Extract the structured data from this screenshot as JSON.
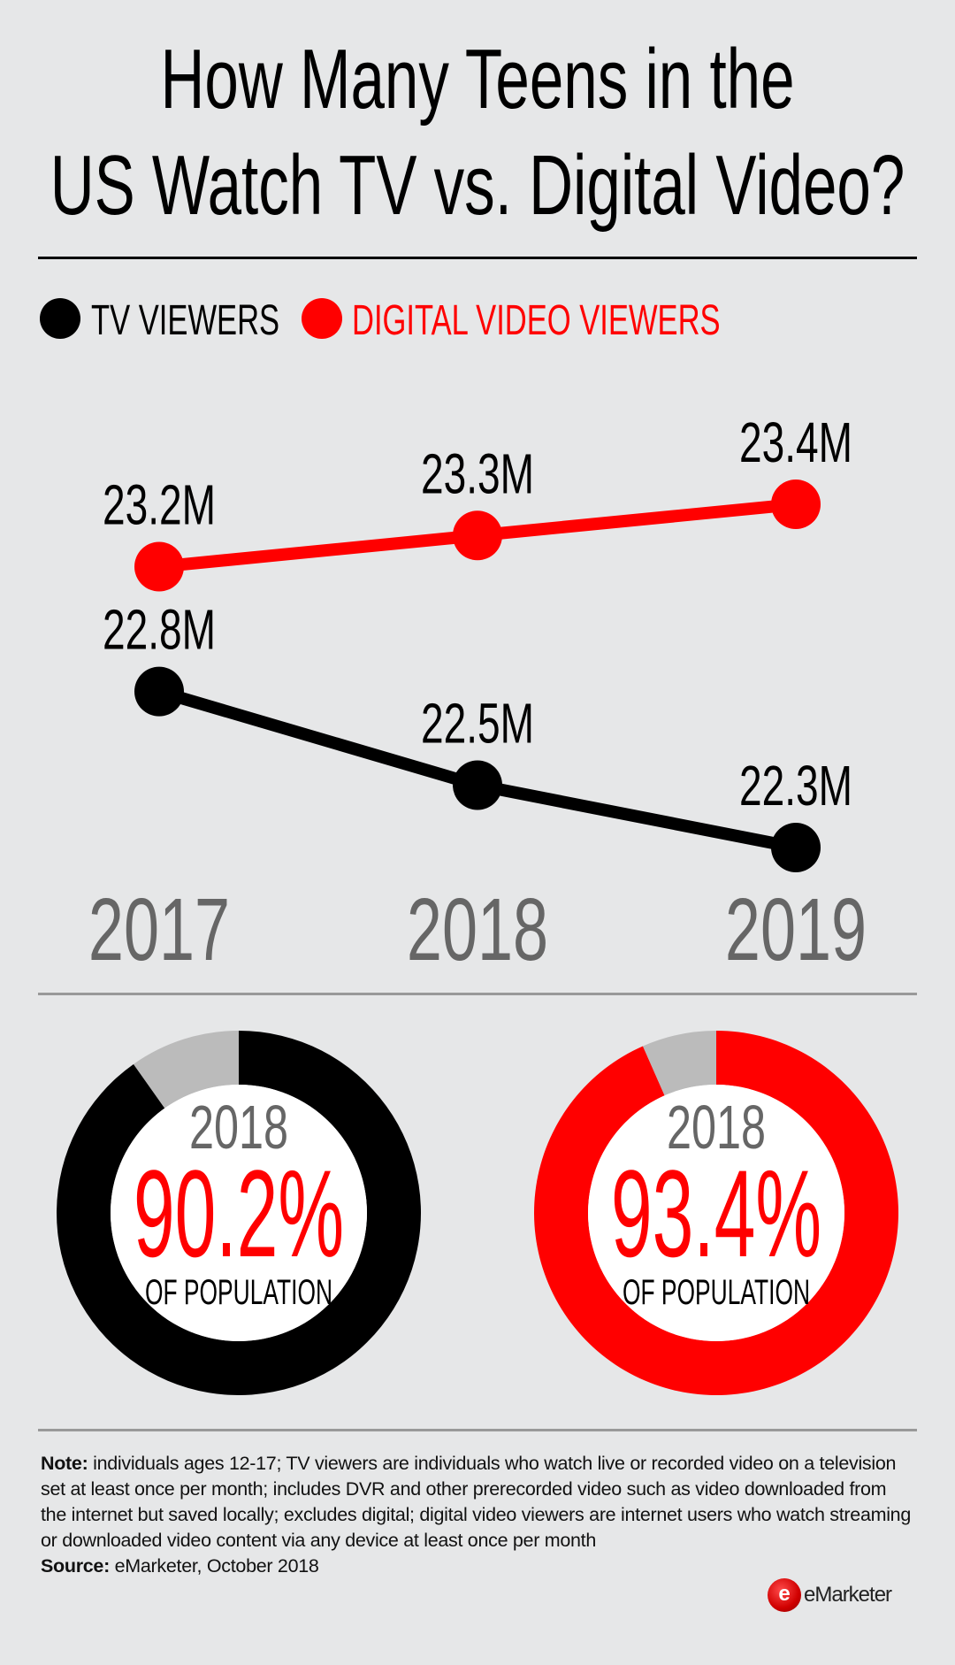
{
  "title_lines": [
    "How Many Teens in the",
    "US Watch TV vs. Digital Video?"
  ],
  "colors": {
    "background": "#e6e7e8",
    "tv": "#000000",
    "digital": "#ff0000",
    "remainder": "#bbbbbb",
    "year_text": "#666666"
  },
  "chart_data": [
    {
      "type": "line",
      "categories": [
        "2017",
        "2018",
        "2019"
      ],
      "series": [
        {
          "name": "TV VIEWERS",
          "color": "#000000",
          "values": [
            22.8,
            22.5,
            22.3
          ],
          "labels": [
            "22.8M",
            "22.5M",
            "22.3M"
          ]
        },
        {
          "name": "DIGITAL VIDEO VIEWERS",
          "color": "#ff0000",
          "values": [
            23.2,
            23.3,
            23.4
          ],
          "labels": [
            "23.2M",
            "23.3M",
            "23.4M"
          ]
        }
      ],
      "unit": "millions",
      "legend": "top-left",
      "grid": false
    },
    {
      "type": "pie",
      "variant": "donut",
      "year": "2018",
      "value_label": "90.2%",
      "caption": "OF POPULATION",
      "values": [
        90.2,
        9.8
      ],
      "colors": [
        "#000000",
        "#bbbbbb"
      ]
    },
    {
      "type": "pie",
      "variant": "donut",
      "year": "2018",
      "value_label": "93.4%",
      "caption": "OF POPULATION",
      "values": [
        93.4,
        6.6
      ],
      "colors": [
        "#ff0000",
        "#bbbbbb"
      ]
    }
  ],
  "footer": {
    "note_label": "Note:",
    "note_text": " individuals ages 12-17; TV viewers are individuals who watch live or recorded video on a television set at least once per month; includes DVR and other prerecorded video such as video downloaded from the internet but saved locally; excludes digital; digital video viewers are internet users who watch streaming or downloaded video content via any device at least once per month",
    "source_label": "Source:",
    "source_text": " eMarketer, October 2018",
    "logo_text": "eMarketer"
  }
}
